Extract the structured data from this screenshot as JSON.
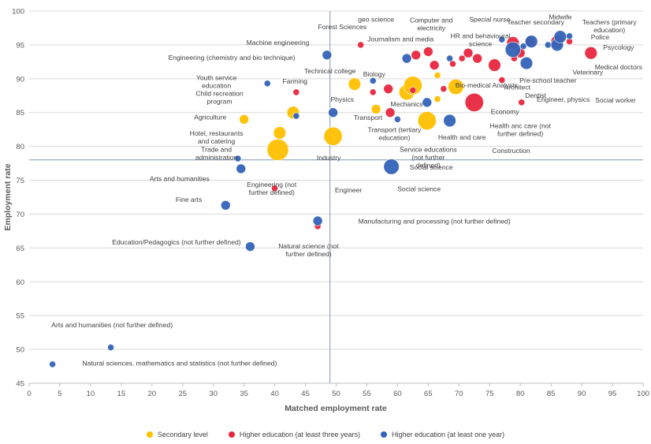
{
  "chart_data": {
    "type": "scatter",
    "title": "",
    "xlabel": "Matched employment rate",
    "ylabel": "Employment rate",
    "xlim": [
      0,
      100
    ],
    "ylim": [
      45,
      100
    ],
    "x_ticks": [
      "0",
      "5",
      "10",
      "15",
      "20",
      "25",
      "30",
      "35",
      "40",
      "45",
      "50",
      "55",
      "60",
      "65",
      "70",
      "75",
      "80",
      "85",
      "90",
      "95",
      "100"
    ],
    "y_ticks": [
      "45",
      "50",
      "55",
      "60",
      "65",
      "70",
      "75",
      "80",
      "85",
      "90",
      "95",
      "100"
    ],
    "reference_lines": {
      "x": 49,
      "y": 78
    },
    "legend_position": "bottom",
    "series": [
      {
        "name": "Secondary level",
        "color": "#FFC000",
        "points": [
          {
            "x": 53.0,
            "y": 89.2,
            "s": 3
          },
          {
            "x": 56.5,
            "y": 85.5,
            "s": 2
          },
          {
            "x": 61.5,
            "y": 88.0,
            "s": 4
          },
          {
            "x": 62.5,
            "y": 89.0,
            "s": 5
          },
          {
            "x": 64.8,
            "y": 83.8,
            "s": 5
          },
          {
            "x": 66.5,
            "y": 90.5,
            "s": 1
          },
          {
            "x": 66.5,
            "y": 87.0,
            "s": 1
          },
          {
            "x": 69.5,
            "y": 88.8,
            "s": 4
          },
          {
            "x": 35.0,
            "y": 84.0,
            "s": 2
          },
          {
            "x": 43.0,
            "y": 85.0,
            "s": 3
          },
          {
            "x": 40.8,
            "y": 82.0,
            "s": 3
          },
          {
            "x": 40.5,
            "y": 79.5,
            "s": 6
          },
          {
            "x": 49.5,
            "y": 81.5,
            "s": 5
          }
        ]
      },
      {
        "name": "Higher education (at least three years)",
        "color": "#E8273F",
        "points": [
          {
            "x": 43.5,
            "y": 88.0,
            "s": 1
          },
          {
            "x": 54.0,
            "y": 95.0,
            "s": 1
          },
          {
            "x": 56.0,
            "y": 88.0,
            "s": 1
          },
          {
            "x": 58.5,
            "y": 88.5,
            "s": 2
          },
          {
            "x": 58.8,
            "y": 85.0,
            "s": 2
          },
          {
            "x": 62.5,
            "y": 88.3,
            "s": 1
          },
          {
            "x": 63.0,
            "y": 93.5,
            "s": 2
          },
          {
            "x": 65.0,
            "y": 94.0,
            "s": 2
          },
          {
            "x": 66.0,
            "y": 92.0,
            "s": 2
          },
          {
            "x": 67.5,
            "y": 88.5,
            "s": 1
          },
          {
            "x": 69.0,
            "y": 92.2,
            "s": 1
          },
          {
            "x": 70.5,
            "y": 93.0,
            "s": 1
          },
          {
            "x": 71.5,
            "y": 93.8,
            "s": 2
          },
          {
            "x": 73.0,
            "y": 93.0,
            "s": 2
          },
          {
            "x": 72.5,
            "y": 86.5,
            "s": 5
          },
          {
            "x": 75.8,
            "y": 92.0,
            "s": 3
          },
          {
            "x": 77.0,
            "y": 89.8,
            "s": 1
          },
          {
            "x": 78.8,
            "y": 95.3,
            "s": 3
          },
          {
            "x": 79.0,
            "y": 93.0,
            "s": 1
          },
          {
            "x": 80.0,
            "y": 93.8,
            "s": 2
          },
          {
            "x": 80.2,
            "y": 86.5,
            "s": 1
          },
          {
            "x": 81.5,
            "y": 95.5,
            "s": 2
          },
          {
            "x": 86.0,
            "y": 95.5,
            "s": 3
          },
          {
            "x": 88.0,
            "y": 95.5,
            "s": 1
          },
          {
            "x": 91.5,
            "y": 93.8,
            "s": 3
          },
          {
            "x": 40.0,
            "y": 73.8,
            "s": 1
          },
          {
            "x": 47.0,
            "y": 68.2,
            "s": 1
          }
        ]
      },
      {
        "name": "Higher education (at least one year)",
        "color": "#3463B8",
        "points": [
          {
            "x": 48.5,
            "y": 93.5,
            "s": 2
          },
          {
            "x": 38.8,
            "y": 89.3,
            "s": 1
          },
          {
            "x": 43.5,
            "y": 84.5,
            "s": 1
          },
          {
            "x": 49.5,
            "y": 85.0,
            "s": 2
          },
          {
            "x": 56.0,
            "y": 89.7,
            "s": 1
          },
          {
            "x": 60.0,
            "y": 84.0,
            "s": 1
          },
          {
            "x": 61.5,
            "y": 93.0,
            "s": 2
          },
          {
            "x": 64.8,
            "y": 86.5,
            "s": 2
          },
          {
            "x": 68.5,
            "y": 93.0,
            "s": 1
          },
          {
            "x": 68.5,
            "y": 83.8,
            "s": 3
          },
          {
            "x": 77.0,
            "y": 95.8,
            "s": 1
          },
          {
            "x": 78.8,
            "y": 94.3,
            "s": 4
          },
          {
            "x": 80.5,
            "y": 94.8,
            "s": 1
          },
          {
            "x": 81.0,
            "y": 92.3,
            "s": 3
          },
          {
            "x": 81.8,
            "y": 95.5,
            "s": 3
          },
          {
            "x": 84.5,
            "y": 95.0,
            "s": 1
          },
          {
            "x": 86.0,
            "y": 95.0,
            "s": 3
          },
          {
            "x": 86.5,
            "y": 96.2,
            "s": 3
          },
          {
            "x": 88.0,
            "y": 96.3,
            "s": 1
          },
          {
            "x": 34.0,
            "y": 78.2,
            "s": 1
          },
          {
            "x": 34.5,
            "y": 76.7,
            "s": 2
          },
          {
            "x": 32.0,
            "y": 71.3,
            "s": 2
          },
          {
            "x": 36.0,
            "y": 65.2,
            "s": 2
          },
          {
            "x": 47.0,
            "y": 69.0,
            "s": 2
          },
          {
            "x": 59.0,
            "y": 77.0,
            "s": 4
          },
          {
            "x": 13.3,
            "y": 50.3,
            "s": 1
          },
          {
            "x": 3.8,
            "y": 47.8,
            "s": 1
          }
        ]
      }
    ],
    "annotations": [
      {
        "text": "Forest Sciences",
        "x": 51.0,
        "y": 97.3
      },
      {
        "text": "geo science",
        "x": 56.5,
        "y": 98.4
      },
      {
        "text": "Computer and electricity",
        "x": 65.5,
        "y": 98.3
      },
      {
        "text": "Journalism and media",
        "x": 60.5,
        "y": 95.5
      },
      {
        "text": "Special nurse",
        "x": 75.0,
        "y": 98.4
      },
      {
        "text": "Teacher secondary",
        "x": 82.5,
        "y": 98.0
      },
      {
        "text": "Midwife",
        "x": 86.5,
        "y": 98.8
      },
      {
        "text": "Teachers (primary education)",
        "x": 94.5,
        "y": 98.0
      },
      {
        "text": "HR and behavioural science",
        "x": 73.5,
        "y": 96.0
      },
      {
        "text": "Police",
        "x": 93.0,
        "y": 95.8
      },
      {
        "text": "Psycology",
        "x": 96.0,
        "y": 94.3
      },
      {
        "text": "Medical doctors",
        "x": 96.0,
        "y": 91.4
      },
      {
        "text": "Veterinary",
        "x": 91.0,
        "y": 90.6
      },
      {
        "text": "Pre-school teacher",
        "x": 84.5,
        "y": 89.4
      },
      {
        "text": "Social worker",
        "x": 95.5,
        "y": 86.5
      },
      {
        "text": "Engineer, physics",
        "x": 87.0,
        "y": 86.6
      },
      {
        "text": "Dentist",
        "x": 82.5,
        "y": 87.2
      },
      {
        "text": "Architect",
        "x": 79.5,
        "y": 88.4
      },
      {
        "text": "Bio-medical Analysts",
        "x": 74.5,
        "y": 88.7
      },
      {
        "text": "Economy",
        "x": 77.5,
        "y": 84.8
      },
      {
        "text": "Health anc care (not further defined)",
        "x": 80.0,
        "y": 82.7
      },
      {
        "text": "Construction",
        "x": 78.5,
        "y": 79.0
      },
      {
        "text": "Machine engineering",
        "x": 40.5,
        "y": 95.0
      },
      {
        "text": "Engineering (chemistry and bio technique)",
        "x": 33.0,
        "y": 92.8
      },
      {
        "text": "Youth service education",
        "x": 30.5,
        "y": 89.8
      },
      {
        "text": "Farming",
        "x": 43.3,
        "y": 89.3
      },
      {
        "text": "Technical college",
        "x": 49.0,
        "y": 90.8
      },
      {
        "text": "Biology",
        "x": 56.2,
        "y": 90.3
      },
      {
        "text": "Child recreation program",
        "x": 31.0,
        "y": 87.5
      },
      {
        "text": "Physics",
        "x": 51.0,
        "y": 86.6
      },
      {
        "text": "Mechanics",
        "x": 61.5,
        "y": 85.9
      },
      {
        "text": "Agriculture",
        "x": 29.5,
        "y": 84.0
      },
      {
        "text": "Transport",
        "x": 55.2,
        "y": 83.9
      },
      {
        "text": "Transport (tertiary education)",
        "x": 59.5,
        "y": 82.1
      },
      {
        "text": "Health and care",
        "x": 70.5,
        "y": 81.0
      },
      {
        "text": "Hotel, restaurants and catering",
        "x": 30.5,
        "y": 81.6
      },
      {
        "text": "Trade and administration",
        "x": 30.5,
        "y": 79.2
      },
      {
        "text": "Service educations (not further defined)",
        "x": 65.0,
        "y": 79.2
      },
      {
        "text": "Industry",
        "x": 48.8,
        "y": 78.0
      },
      {
        "text": "Social science",
        "x": 65.5,
        "y": 76.6
      },
      {
        "text": "Arts and humanities",
        "x": 24.5,
        "y": 74.9
      },
      {
        "text": "Engineering (not further defined)",
        "x": 39.5,
        "y": 74.0
      },
      {
        "text": "Engineer",
        "x": 52.0,
        "y": 73.2
      },
      {
        "text": "Social science",
        "x": 63.5,
        "y": 73.4
      },
      {
        "text": "Fine arts",
        "x": 26.0,
        "y": 71.8
      },
      {
        "text": "Manufacturing and processing (not further defined)",
        "x": 66.0,
        "y": 68.6
      },
      {
        "text": "Education/Pedagogics (not further defined)",
        "x": 24.0,
        "y": 65.5
      },
      {
        "text": "Natural science (not further defined)",
        "x": 45.5,
        "y": 64.9
      },
      {
        "text": "Arts and humanities (not further defined)",
        "x": 13.5,
        "y": 53.3
      },
      {
        "text": "Natural sciences, mathematics and statistics (not further defined)",
        "x": 24.5,
        "y": 47.6
      }
    ]
  },
  "legend": {
    "items": [
      {
        "label": "Secondary level",
        "color": "#FFC000"
      },
      {
        "label": "Higher education (at least three years)",
        "color": "#E8273F"
      },
      {
        "label": "Higher education (at least one year)",
        "color": "#3463B8"
      }
    ]
  }
}
